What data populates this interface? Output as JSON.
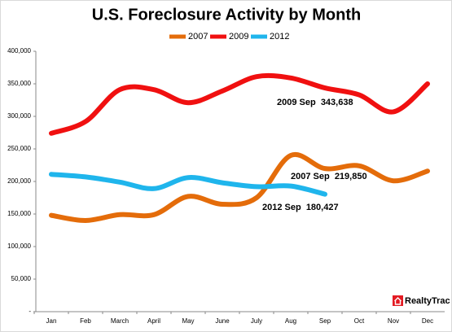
{
  "chart_data": {
    "type": "line",
    "title": "U.S. Foreclosure Activity by Month",
    "categories": [
      "Jan",
      "Feb",
      "March",
      "April",
      "May",
      "June",
      "July",
      "Aug",
      "Sep",
      "Oct",
      "Nov",
      "Dec"
    ],
    "series": [
      {
        "name": "2007",
        "color": "#e46c0a",
        "values": [
          148000,
          140000,
          149000,
          149000,
          177000,
          165000,
          175000,
          240000,
          219850,
          224000,
          201000,
          216000
        ]
      },
      {
        "name": "2009",
        "color": "#f01010",
        "values": [
          274000,
          292000,
          341000,
          341000,
          321000,
          339000,
          361000,
          359000,
          343638,
          333000,
          307000,
          350000
        ]
      },
      {
        "name": "2012",
        "color": "#1fb5ec",
        "values": [
          211000,
          207000,
          199000,
          189000,
          206000,
          198000,
          192000,
          193000,
          180427,
          null,
          null,
          null
        ]
      }
    ],
    "ylim": [
      0,
      400000
    ],
    "yticks": [
      {
        "value": 0,
        "label": "-"
      },
      {
        "value": 50000,
        "label": "50,000"
      },
      {
        "value": 100000,
        "label": "100,000"
      },
      {
        "value": 150000,
        "label": "150,000"
      },
      {
        "value": 200000,
        "label": "200,000"
      },
      {
        "value": 250000,
        "label": "250,000"
      },
      {
        "value": 300000,
        "label": "300,000"
      },
      {
        "value": 350000,
        "label": "350,000"
      },
      {
        "value": 400000,
        "label": "400,000"
      }
    ],
    "annotations": [
      {
        "text": "2009 Sep  343,638"
      },
      {
        "text": "2007 Sep  219,850"
      },
      {
        "text": "2012 Sep  180,427"
      }
    ],
    "logo": "RealtyTrac",
    "legend": "top",
    "grid": false
  }
}
